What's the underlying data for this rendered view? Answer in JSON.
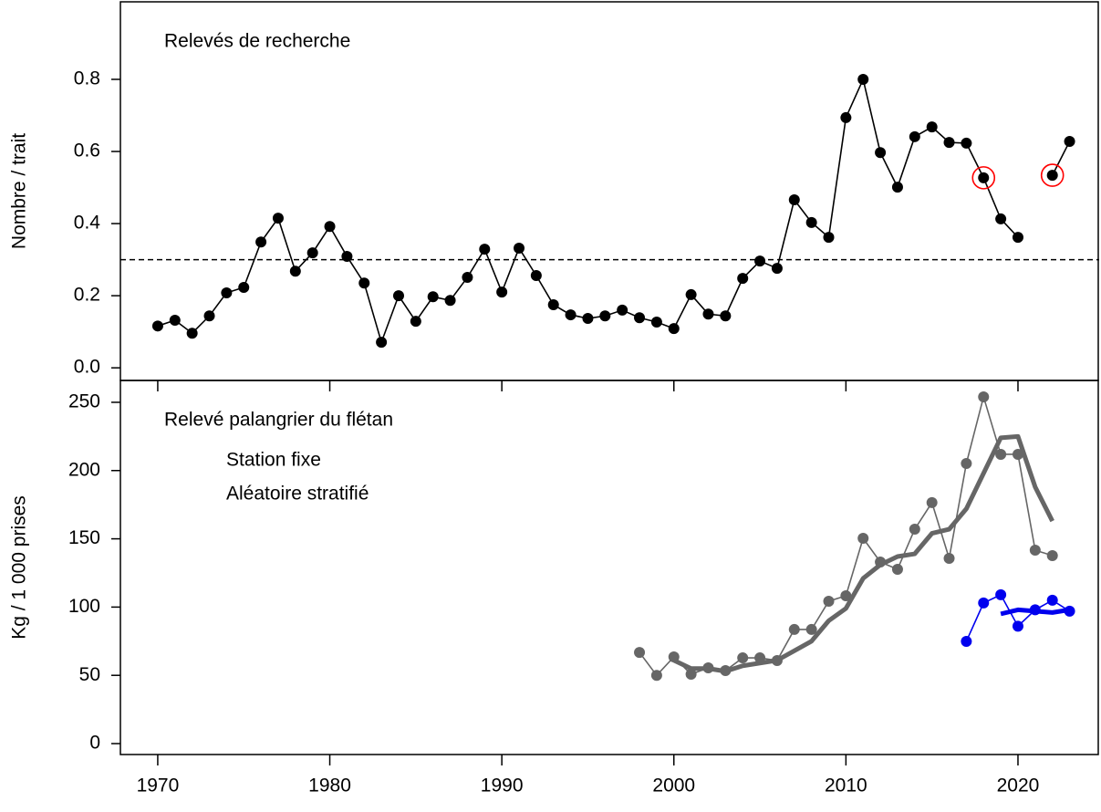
{
  "chart_data": [
    {
      "type": "line",
      "title": "Relevés de recherche",
      "ylabel": "Nombre / trait",
      "x": [
        1970,
        1971,
        1972,
        1973,
        1974,
        1975,
        1976,
        1977,
        1978,
        1979,
        1980,
        1981,
        1982,
        1983,
        1984,
        1985,
        1986,
        1987,
        1988,
        1989,
        1990,
        1991,
        1992,
        1993,
        1994,
        1995,
        1996,
        1997,
        1998,
        1999,
        2000,
        2001,
        2002,
        2003,
        2004,
        2005,
        2006,
        2007,
        2008,
        2009,
        2010,
        2011,
        2012,
        2013,
        2014,
        2015,
        2016,
        2017,
        2018,
        2019,
        2020,
        2021,
        2022,
        2023
      ],
      "values": [
        0.116,
        0.132,
        0.096,
        0.144,
        0.208,
        0.223,
        0.349,
        0.415,
        0.268,
        0.319,
        0.392,
        0.309,
        0.235,
        0.071,
        0.2,
        0.129,
        0.197,
        0.187,
        0.251,
        0.329,
        0.21,
        0.332,
        0.256,
        0.175,
        0.147,
        0.137,
        0.144,
        0.16,
        0.139,
        0.127,
        0.109,
        0.203,
        0.149,
        0.144,
        0.248,
        0.296,
        0.276,
        0.466,
        0.403,
        0.362,
        0.694,
        0.8,
        0.597,
        0.501,
        0.641,
        0.668,
        0.625,
        0.623,
        0.527,
        0.413,
        0.362,
        null,
        0.534,
        0.628
      ],
      "color": "#000000",
      "highlight": [
        2018,
        2022
      ],
      "highlight_color": "#ff0000",
      "reference_line": 0.3,
      "xlim": [
        1967.83,
        2024.72
      ],
      "ylim": [
        -0.035,
        1.015
      ],
      "yticks": [
        {
          "value": 0,
          "label": "0.0"
        },
        0.2,
        0.4,
        0.6,
        0.8
      ]
    },
    {
      "type": "line",
      "title": "Relevé palangrier du flétan",
      "ylabel": "Kg / 1 000 prises",
      "series": [
        {
          "name": "Station fixe",
          "color": "#666666",
          "x": [
            1998,
            1999,
            2000,
            2001,
            2002,
            2003,
            2004,
            2005,
            2006,
            2007,
            2008,
            2009,
            2010,
            2011,
            2012,
            2013,
            2014,
            2015,
            2016,
            2017,
            2018,
            2019,
            2020,
            2021,
            2022
          ],
          "values": [
            66.8,
            50,
            63.5,
            50.8,
            55.5,
            53.5,
            62.8,
            62.8,
            60.8,
            83.6,
            83.6,
            104.3,
            108.3,
            150.4,
            133,
            127.7,
            157.1,
            176.5,
            135.7,
            205.2,
            254,
            211.9,
            211.9,
            141.7,
            137.7
          ],
          "trend_x": [
            2000,
            2001,
            2002,
            2003,
            2004,
            2005,
            2006,
            2007,
            2008,
            2009,
            2010,
            2011,
            2012,
            2013,
            2014,
            2015,
            2016,
            2017,
            2018,
            2019,
            2020,
            2021,
            2022
          ],
          "trend_values": [
            61,
            55,
            55,
            53,
            57,
            59,
            61,
            68,
            75,
            90,
            99,
            121,
            131,
            137,
            139,
            154,
            157,
            172,
            198,
            224,
            225,
            188,
            163
          ]
        },
        {
          "name": "Aléatoire stratifié",
          "color": "#0000ee",
          "x": [
            2017,
            2018,
            2019,
            2020,
            2021,
            2022,
            2023
          ],
          "values": [
            74.9,
            103,
            109,
            86,
            98,
            105,
            97
          ],
          "trend_x": [
            2019,
            2020,
            2021,
            2022,
            2023
          ],
          "trend_values": [
            95,
            98,
            97,
            96,
            98
          ]
        }
      ],
      "xlim": [
        1967.83,
        2024.72
      ],
      "ylim": [
        -8,
        266
      ],
      "yticks": [
        0,
        50,
        100,
        150,
        200,
        250
      ],
      "xticks": [
        1970,
        1980,
        1990,
        2000,
        2010,
        2020
      ]
    }
  ]
}
